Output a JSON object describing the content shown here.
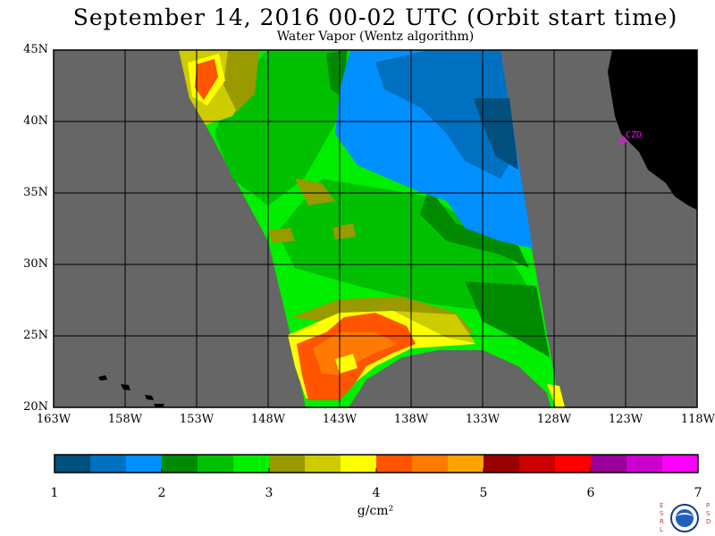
{
  "title": "September 14, 2016  00-02 UTC  (Orbit start time)",
  "subtitle": "Water Vapor (Wentz algorithm)",
  "map": {
    "lat_labels": [
      "45N",
      "40N",
      "35N",
      "30N",
      "25N",
      "20N"
    ],
    "lon_labels": [
      "163W",
      "158W",
      "153W",
      "148W",
      "143W",
      "138W",
      "133W",
      "128W",
      "123W",
      "118W"
    ],
    "lat_range": [
      20,
      45
    ],
    "lon_range": [
      -163,
      -118
    ],
    "ocean_no_data_color": "#666666",
    "land_color": "#000000",
    "station_label": "CZD"
  },
  "colorbar": {
    "tick_labels": [
      "1",
      "2",
      "3",
      "4",
      "5",
      "6",
      "7"
    ],
    "unit_label": "g/cm²",
    "range": [
      1,
      7
    ],
    "colors": [
      "#004f7c",
      "#0070c0",
      "#0090ff",
      "#008a00",
      "#00c000",
      "#00ee00",
      "#999900",
      "#cccc00",
      "#ffff00",
      "#ff5500",
      "#ff7a00",
      "#ffa200",
      "#990000",
      "#cc0000",
      "#ff0000",
      "#990099",
      "#cc00cc",
      "#ff00ff"
    ]
  },
  "logo": {
    "left_letters": "ESRL",
    "right_letters": "PSD",
    "center": "NOAA"
  }
}
